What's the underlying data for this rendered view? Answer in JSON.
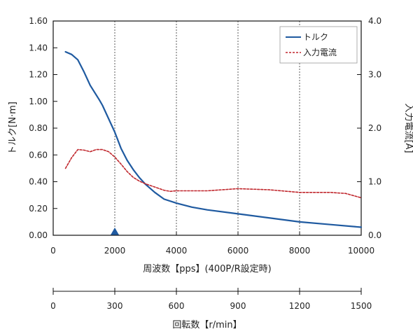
{
  "chart_data": {
    "type": "line",
    "x_axis": {
      "label": "周波数【pps】(400P/R設定時)",
      "range": [
        0,
        10000
      ],
      "ticks": [
        "0",
        "2000",
        "4000",
        "6000",
        "8000",
        "10000"
      ],
      "marker_at": 2000,
      "marker_color": "#1f5aa0"
    },
    "y_axis_left": {
      "label": "トルク[N·m]",
      "range": [
        0,
        1.6
      ],
      "ticks": [
        "0.00",
        "0.20",
        "0.40",
        "0.60",
        "0.80",
        "1.00",
        "1.20",
        "1.40",
        "1.60"
      ]
    },
    "y_axis_right": {
      "label": "入力電流[A]",
      "range": [
        0,
        4
      ],
      "ticks": [
        "0.0",
        "1.0",
        "2.0",
        "3.0",
        "4.0"
      ]
    },
    "secondary_x_axis": {
      "label": "回転数【r/min】",
      "range": [
        0,
        1500
      ],
      "ticks": [
        "0",
        "300",
        "600",
        "900",
        "1200",
        "1500"
      ]
    },
    "grid": "vertical-dashed",
    "legend": {
      "position": "top-right"
    },
    "series": [
      {
        "name": "トルク",
        "axis": "left",
        "color": "#1f5aa0",
        "style": "solid",
        "x": [
          400,
          600,
          800,
          1000,
          1200,
          1500,
          1600,
          1800,
          2000,
          2200,
          2400,
          2600,
          2800,
          3000,
          3300,
          3600,
          4000,
          4500,
          5000,
          6000,
          7000,
          8000,
          9000,
          10000
        ],
        "y": [
          1.37,
          1.35,
          1.31,
          1.22,
          1.12,
          1.01,
          0.97,
          0.87,
          0.77,
          0.65,
          0.56,
          0.49,
          0.43,
          0.38,
          0.32,
          0.27,
          0.24,
          0.21,
          0.19,
          0.16,
          0.13,
          0.1,
          0.08,
          0.06
        ]
      },
      {
        "name": "入力電流",
        "axis": "right",
        "color": "#c0272d",
        "style": "dashed",
        "x": [
          400,
          600,
          800,
          1000,
          1200,
          1400,
          1600,
          1800,
          2000,
          2200,
          2400,
          2600,
          2800,
          3000,
          3300,
          3600,
          3800,
          4000,
          5000,
          5500,
          6000,
          7000,
          8000,
          9000,
          9500,
          10000
        ],
        "y": [
          1.25,
          1.45,
          1.6,
          1.59,
          1.56,
          1.6,
          1.6,
          1.56,
          1.46,
          1.33,
          1.19,
          1.08,
          1.01,
          0.96,
          0.9,
          0.84,
          0.82,
          0.83,
          0.83,
          0.85,
          0.87,
          0.85,
          0.8,
          0.8,
          0.78,
          0.7
        ]
      }
    ]
  }
}
